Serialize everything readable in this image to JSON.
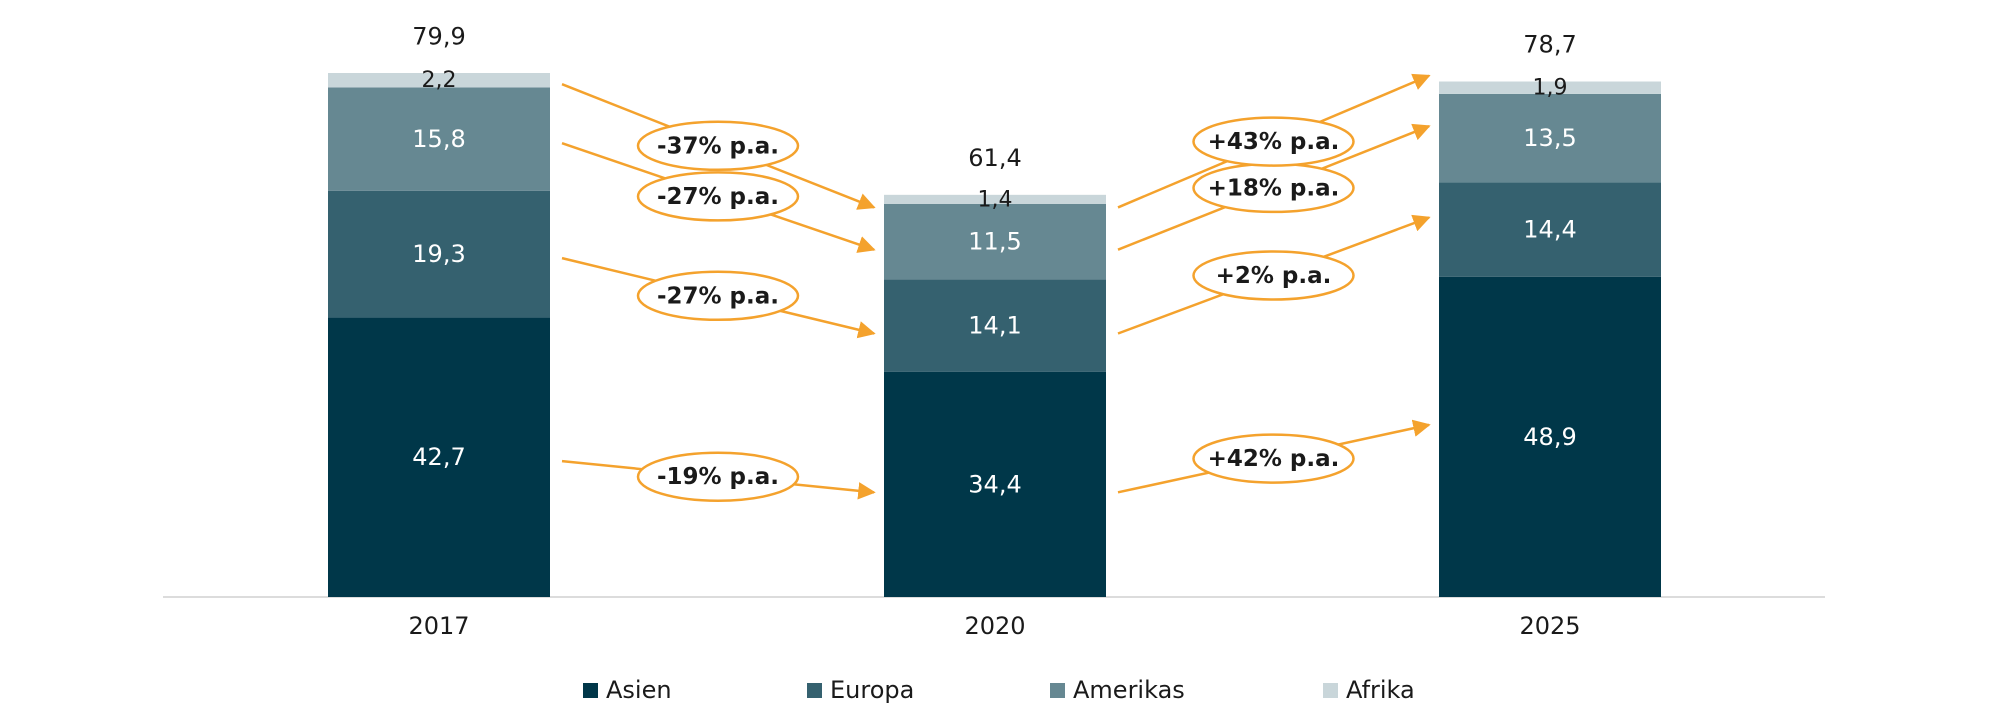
{
  "chart_data": {
    "type": "stacked-bar",
    "categories": [
      "2017",
      "2020",
      "2025"
    ],
    "series": [
      {
        "name": "Asien",
        "color": "#003749",
        "values": [
          42.7,
          34.4,
          48.9
        ],
        "value_labels": [
          "42,7",
          "34,4",
          "48,9"
        ]
      },
      {
        "name": "Europa",
        "color": "#35616f",
        "values": [
          19.3,
          14.1,
          14.4
        ],
        "value_labels": [
          "19,3",
          "14,1",
          "14,4"
        ]
      },
      {
        "name": "Amerikas",
        "color": "#668892",
        "values": [
          15.8,
          11.5,
          13.5
        ],
        "value_labels": [
          "15,8",
          "11,5",
          "13,5"
        ]
      },
      {
        "name": "Afrika",
        "color": "#c9d6da",
        "values": [
          2.2,
          1.4,
          1.9
        ],
        "value_labels": [
          "2,2",
          "1,4",
          "1,9"
        ]
      }
    ],
    "totals": [
      79.9,
      61.4,
      78.7
    ],
    "total_labels": [
      "79,9",
      "61,4",
      "78,7"
    ],
    "growth_labels": [
      [
        "-19% p.a.",
        "-27% p.a.",
        "-27% p.a.",
        "-37% p.a."
      ],
      [
        "+42% p.a.",
        "+2% p.a.",
        "+18% p.a.",
        "+43% p.a."
      ]
    ],
    "growth_color": "#f4a22d",
    "legend": "bottom"
  }
}
